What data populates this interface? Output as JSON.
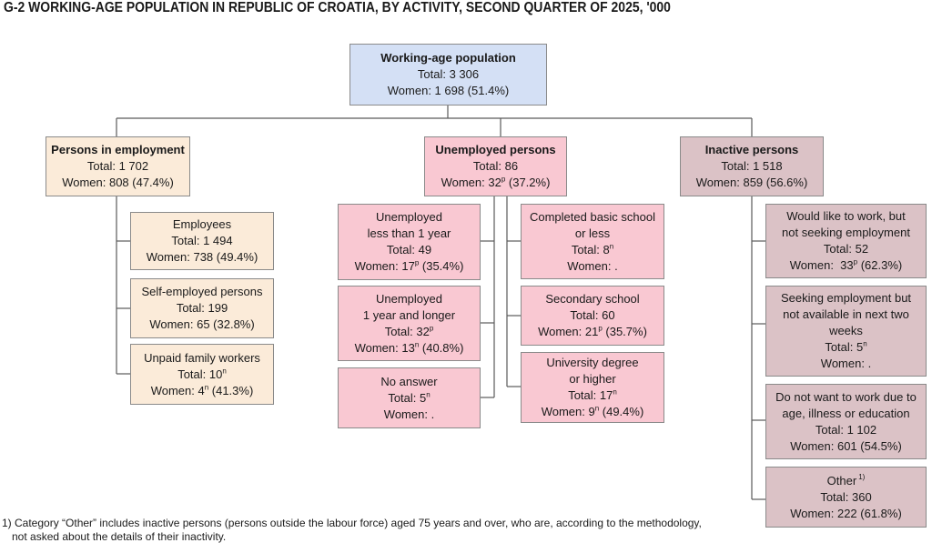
{
  "title": "G-2  WORKING-AGE POPULATION IN REPUBLIC OF CROATIA, BY ACTIVITY, SECOND QUARTER OF 2025, '000",
  "root": {
    "heading": "Working-age population",
    "total": "Total: 3 306",
    "women": "Women: 1 698 (51.4%)"
  },
  "employment": {
    "heading": "Persons in employment",
    "total": "Total: 1 702",
    "women": "Women: 808 (47.4%)",
    "employees": {
      "label": "Employees",
      "total": "Total: 1 494",
      "women": "Women: 738 (49.4%)"
    },
    "self_employed": {
      "label": "Self-employed persons",
      "total": "Total: 199",
      "women": "Women: 65 (32.8%)"
    },
    "unpaid": {
      "label": "Unpaid family workers",
      "total_pre": "Total: 10",
      "total_flag": "n",
      "women_pre": "Women: 4",
      "women_flag": "n",
      "women_post": " (41.3%)"
    }
  },
  "unemployed": {
    "heading": "Unemployed persons",
    "total": "Total: 86",
    "women_pre": "Women: 32",
    "women_flag": "p",
    "women_post": " (37.2%)",
    "lt1": {
      "line1": "Unemployed",
      "line2": "less than 1 year",
      "total": "Total: 49",
      "women_pre": "Women: 17",
      "women_flag": "p",
      "women_post": " (35.4%)"
    },
    "ge1": {
      "line1": "Unemployed",
      "line2": "1 year and longer",
      "total_pre": "Total: 32",
      "total_flag": "p",
      "women_pre": "Women: 13",
      "women_flag": "n",
      "women_post": " (40.8%)"
    },
    "no_answer": {
      "label": "No answer",
      "total_pre": "Total: 5",
      "total_flag": "n",
      "women": "Women: ."
    },
    "basic": {
      "line1": "Completed basic school",
      "line2": "or less",
      "total_pre": "Total: 8",
      "total_flag": "n",
      "women": "Women: ."
    },
    "secondary": {
      "label": "Secondary school",
      "total": "Total: 60",
      "women_pre": "Women: 21",
      "women_flag": "p",
      "women_post": " (35.7%)"
    },
    "university": {
      "line1": "University degree",
      "line2": "or higher",
      "total_pre": "Total: 17",
      "total_flag": "n",
      "women_pre": "Women: 9",
      "women_flag": "n",
      "women_post": " (49.4%)"
    }
  },
  "inactive": {
    "heading": "Inactive persons",
    "total": "Total: 1 518",
    "women": "Women: 859 (56.6%)",
    "would_like": {
      "line1": "Would like to work, but",
      "line2": "not seeking employment",
      "total": "Total: 52",
      "women_pre": "Women:  33",
      "women_flag": "p",
      "women_post": " (62.3%)"
    },
    "seeking_na": {
      "line1": "Seeking employment but",
      "line2": "not available in next two",
      "line3": "weeks",
      "total_pre": "Total: 5",
      "total_flag": "n",
      "women": "Women: ."
    },
    "do_not_want": {
      "line1": "Do not want to work due to",
      "line2": "age, illness or education",
      "total": "Total: 1 102",
      "women": "Women: 601 (54.5%)"
    },
    "other": {
      "label": "Other",
      "label_flag": "1)",
      "total": "Total: 360",
      "women": "Women: 222 (61.8%)"
    }
  },
  "footnote": {
    "line1": "1) Category “Other” includes inactive persons (persons outside the labour force) aged 75 years and over, who are, according to the methodology,",
    "line2": "not asked about the details of their inactivity."
  }
}
